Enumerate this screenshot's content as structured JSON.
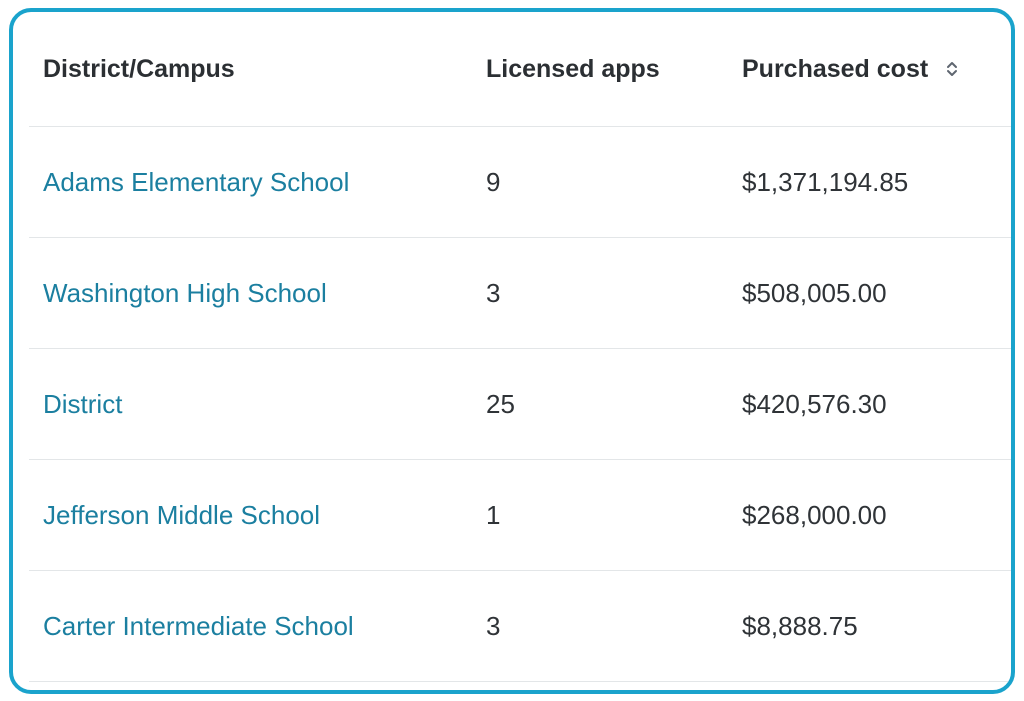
{
  "table": {
    "headers": {
      "name": "District/Campus",
      "apps": "Licensed apps",
      "cost": "Purchased cost"
    },
    "sort_icon": "sort-updown-icon",
    "rows": [
      {
        "name": "Adams Elementary School",
        "apps": "9",
        "cost": "$1,371,194.85"
      },
      {
        "name": "Washington High School",
        "apps": "3",
        "cost": "$508,005.00"
      },
      {
        "name": "District",
        "apps": "25",
        "cost": "$420,576.30"
      },
      {
        "name": "Jefferson Middle School",
        "apps": "1",
        "cost": "$268,000.00"
      },
      {
        "name": "Carter Intermediate School",
        "apps": "3",
        "cost": "$8,888.75"
      }
    ]
  },
  "colors": {
    "border": "#1aa3cc",
    "link": "#1b7fa0",
    "text": "#2f3337",
    "divider": "#e3e6e8"
  }
}
